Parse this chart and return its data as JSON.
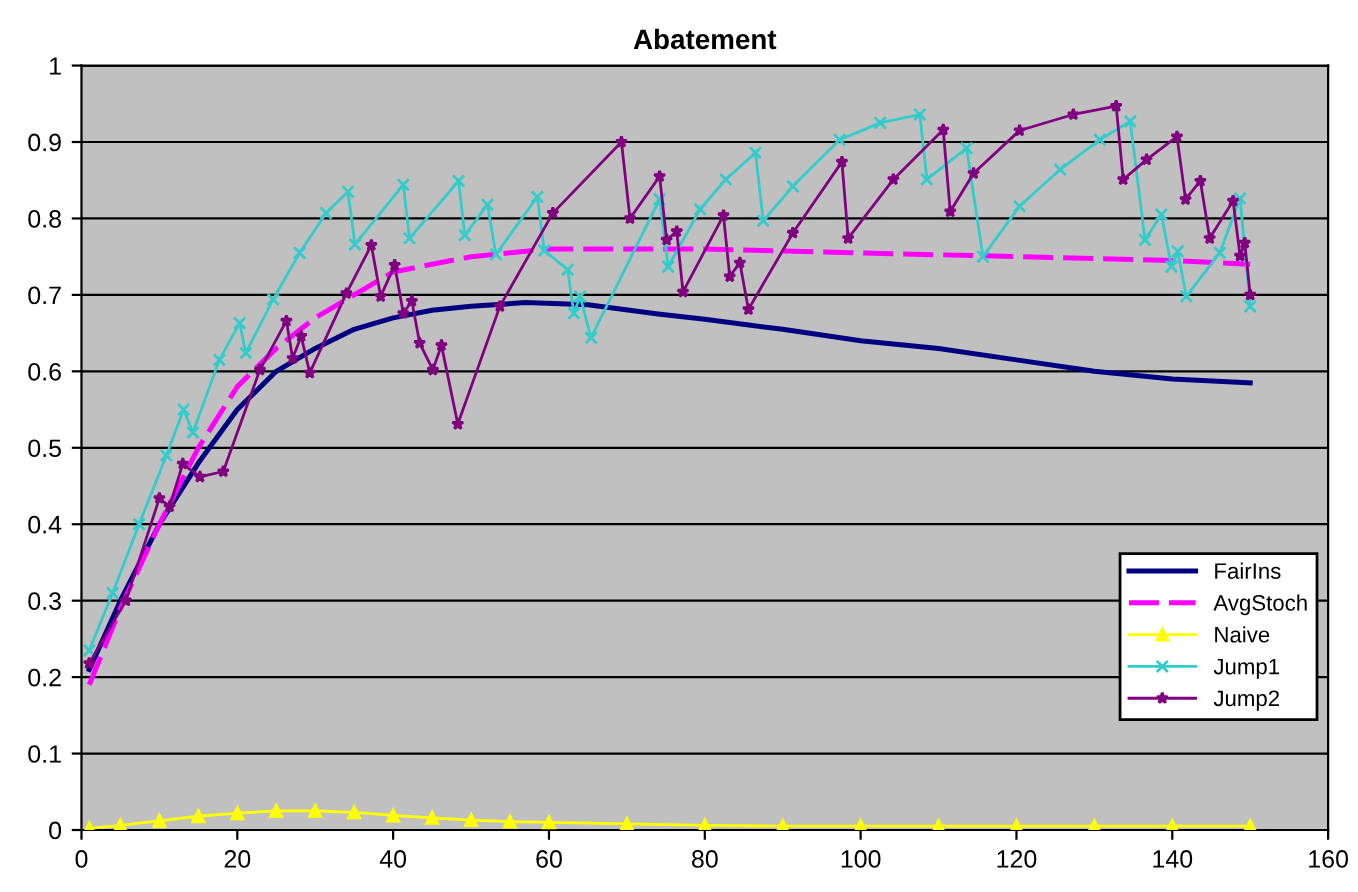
{
  "chart_data": {
    "type": "line",
    "title": "Abatement",
    "xlim": [
      0,
      160
    ],
    "xticks": [
      0,
      20,
      40,
      60,
      80,
      100,
      120,
      140,
      160
    ],
    "ylim": [
      0,
      1
    ],
    "yticks": [
      0,
      0.1,
      0.2,
      0.3,
      0.4,
      0.5,
      0.6,
      0.7,
      0.8,
      0.9,
      1
    ],
    "grid": "y",
    "legend": "bottom right",
    "series": [
      {
        "name": "FairIns",
        "color": "#000080",
        "marker": "none",
        "line_style": "solid",
        "x": [
          1,
          5,
          10,
          15,
          20,
          25,
          30,
          35,
          40,
          45,
          50,
          57,
          65,
          74,
          80,
          90,
          100,
          110,
          120,
          130,
          140,
          150
        ],
        "values": [
          0.21,
          0.3,
          0.4,
          0.48,
          0.55,
          0.6,
          0.63,
          0.655,
          0.67,
          0.68,
          0.685,
          0.69,
          0.687,
          0.675,
          0.668,
          0.655,
          0.64,
          0.63,
          0.615,
          0.6,
          0.59,
          0.585
        ]
      },
      {
        "name": "AvgStoch",
        "color": "#ff00ff",
        "marker": "none",
        "line_style": "dashed",
        "x": [
          1,
          5,
          10,
          15,
          20,
          25,
          30,
          35,
          40,
          45,
          50,
          60,
          70,
          80,
          100,
          120,
          140,
          150
        ],
        "values": [
          0.19,
          0.29,
          0.4,
          0.5,
          0.58,
          0.63,
          0.67,
          0.7,
          0.73,
          0.74,
          0.75,
          0.76,
          0.76,
          0.76,
          0.755,
          0.75,
          0.745,
          0.74
        ]
      },
      {
        "name": "Naive",
        "color": "#ffff00",
        "marker": "triangle",
        "line_style": "solid",
        "x": [
          1,
          5,
          10,
          15,
          20,
          25,
          30,
          35,
          40,
          45,
          50,
          55,
          60,
          70,
          80,
          90,
          100,
          110,
          120,
          130,
          140,
          150
        ],
        "values": [
          0.002,
          0.006,
          0.012,
          0.018,
          0.022,
          0.025,
          0.025,
          0.023,
          0.019,
          0.016,
          0.013,
          0.011,
          0.01,
          0.008,
          0.006,
          0.005,
          0.005,
          0.005,
          0.005,
          0.005,
          0.005,
          0.005
        ]
      },
      {
        "name": "Jump1",
        "color": "#33cccc",
        "marker": "cross",
        "line_style": "solid",
        "x": [
          1,
          4,
          7.4,
          10.9,
          13.1,
          14.3,
          17.7,
          20.3,
          21.1,
          24.6,
          28,
          31.4,
          34.2,
          35.1,
          41.3,
          42.1,
          48.4,
          49.2,
          52.1,
          53.2,
          58.5,
          59.4,
          62.4,
          63.2,
          64,
          65.4,
          74.2,
          75.3,
          79.4,
          82.7,
          86.5,
          87.5,
          91.3,
          97.3,
          102.5,
          107.6,
          108.5,
          113.6,
          115.7,
          120.4,
          125.6,
          130.7,
          134.6,
          136.5,
          138.6,
          139.9,
          140.7,
          141.8,
          146.1,
          148.7,
          150
        ],
        "values": [
          0.235,
          0.31,
          0.4,
          0.49,
          0.55,
          0.52,
          0.615,
          0.663,
          0.624,
          0.694,
          0.755,
          0.807,
          0.835,
          0.766,
          0.844,
          0.774,
          0.849,
          0.778,
          0.818,
          0.753,
          0.828,
          0.758,
          0.733,
          0.676,
          0.698,
          0.644,
          0.825,
          0.737,
          0.812,
          0.851,
          0.886,
          0.797,
          0.842,
          0.903,
          0.925,
          0.936,
          0.851,
          0.892,
          0.75,
          0.816,
          0.864,
          0.903,
          0.927,
          0.772,
          0.805,
          0.737,
          0.757,
          0.698,
          0.755,
          0.826,
          0.685
        ]
      },
      {
        "name": "Jump2",
        "color": "#800080",
        "marker": "star",
        "line_style": "solid",
        "x": [
          1,
          5.7,
          10,
          11.3,
          13,
          15.2,
          18.2,
          22.9,
          26.3,
          27.1,
          28.2,
          29.3,
          34,
          37.2,
          38.4,
          40.2,
          41.3,
          42.4,
          43.4,
          45.1,
          46.2,
          48.3,
          53.7,
          60.5,
          69.3,
          70.4,
          74.2,
          75.1,
          76.4,
          77.2,
          82.4,
          83.2,
          84.5,
          85.6,
          91.3,
          97.6,
          98.4,
          104.2,
          110.6,
          111.5,
          114.5,
          120.4,
          127.3,
          132.8,
          133.7,
          136.7,
          140.6,
          141.7,
          143.6,
          144.8,
          147.8,
          148.7,
          149.3,
          150
        ],
        "values": [
          0.218,
          0.3,
          0.434,
          0.423,
          0.479,
          0.462,
          0.469,
          0.602,
          0.666,
          0.617,
          0.646,
          0.598,
          0.702,
          0.765,
          0.698,
          0.739,
          0.676,
          0.692,
          0.637,
          0.602,
          0.634,
          0.531,
          0.685,
          0.807,
          0.9,
          0.8,
          0.855,
          0.772,
          0.783,
          0.704,
          0.804,
          0.724,
          0.742,
          0.681,
          0.781,
          0.874,
          0.774,
          0.851,
          0.916,
          0.809,
          0.859,
          0.915,
          0.936,
          0.947,
          0.851,
          0.877,
          0.907,
          0.825,
          0.849,
          0.774,
          0.823,
          0.751,
          0.768,
          0.7
        ]
      }
    ]
  }
}
